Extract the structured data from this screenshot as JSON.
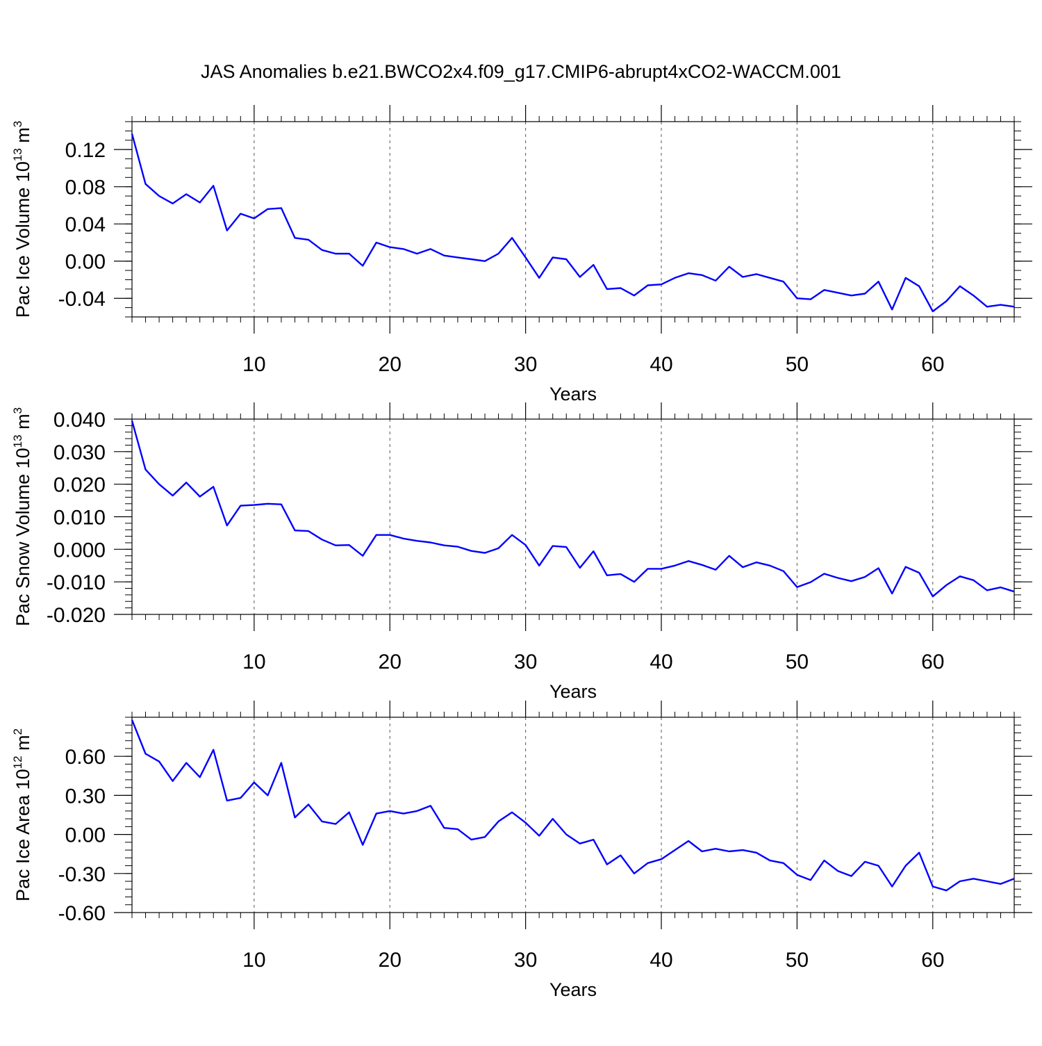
{
  "title": "JAS Anomalies b.e21.BWCO2x4.f09_g17.CMIP6-abrupt4xCO2-WACCM.001",
  "line_color": "#0000ff",
  "chart_data": [
    {
      "type": "line",
      "name": "ice-volume",
      "ylabel": "Pac Ice Volume 10",
      "ylabel_exp": "13",
      "ylabel_unit": " m",
      "ylabel_unit_exp": "3",
      "xlabel": "Years",
      "xlim": [
        1,
        66
      ],
      "ylim": [
        -0.06,
        0.15
      ],
      "yticks": [
        -0.04,
        0.0,
        0.04,
        0.08,
        0.12
      ],
      "ytick_labels": [
        "-0.04",
        "0.00",
        "0.04",
        "0.08",
        "0.12"
      ],
      "yminor_step": 0.01,
      "xticks": [
        10,
        20,
        30,
        40,
        50,
        60
      ],
      "xtick_labels": [
        "10",
        "20",
        "30",
        "40",
        "50",
        "60"
      ],
      "grid": "vertical dashed at x ticks",
      "x": [
        1,
        2,
        3,
        4,
        5,
        6,
        7,
        8,
        9,
        10,
        11,
        12,
        13,
        14,
        15,
        16,
        17,
        18,
        19,
        20,
        21,
        22,
        23,
        24,
        25,
        26,
        27,
        28,
        29,
        30,
        31,
        32,
        33,
        34,
        35,
        36,
        37,
        38,
        39,
        40,
        41,
        42,
        43,
        44,
        45,
        46,
        47,
        48,
        49,
        50,
        51,
        52,
        53,
        54,
        55,
        56,
        57,
        58,
        59,
        60,
        61,
        62,
        63,
        64,
        65,
        66
      ],
      "values": [
        0.137,
        0.083,
        0.07,
        0.062,
        0.072,
        0.063,
        0.081,
        0.033,
        0.051,
        0.046,
        0.056,
        0.057,
        0.025,
        0.023,
        0.012,
        0.008,
        0.008,
        -0.005,
        0.02,
        0.015,
        0.013,
        0.008,
        0.013,
        0.006,
        0.004,
        0.002,
        0.0,
        0.008,
        0.025,
        0.004,
        -0.018,
        0.004,
        0.002,
        -0.017,
        -0.004,
        -0.03,
        -0.029,
        -0.037,
        -0.026,
        -0.025,
        -0.018,
        -0.013,
        -0.015,
        -0.021,
        -0.006,
        -0.017,
        -0.014,
        -0.018,
        -0.022,
        -0.04,
        -0.041,
        -0.031,
        -0.034,
        -0.037,
        -0.035,
        -0.022,
        -0.052,
        -0.018,
        -0.027,
        -0.054,
        -0.043,
        -0.027,
        -0.037,
        -0.049,
        -0.047,
        -0.049
      ]
    },
    {
      "type": "line",
      "name": "snow-volume",
      "ylabel": "Pac Snow Volume 10",
      "ylabel_exp": "13",
      "ylabel_unit": " m",
      "ylabel_unit_exp": "3",
      "xlabel": "Years",
      "xlim": [
        1,
        66
      ],
      "ylim": [
        -0.02,
        0.04
      ],
      "yticks": [
        -0.02,
        -0.01,
        0.0,
        0.01,
        0.02,
        0.03,
        0.04
      ],
      "ytick_labels": [
        "-0.020",
        "-0.010",
        "0.000",
        "0.010",
        "0.020",
        "0.030",
        "0.040"
      ],
      "yminor_step": 0.002,
      "xticks": [
        10,
        20,
        30,
        40,
        50,
        60
      ],
      "xtick_labels": [
        "10",
        "20",
        "30",
        "40",
        "50",
        "60"
      ],
      "grid": "vertical dashed at x ticks",
      "x": [
        1,
        2,
        3,
        4,
        5,
        6,
        7,
        8,
        9,
        10,
        11,
        12,
        13,
        14,
        15,
        16,
        17,
        18,
        19,
        20,
        21,
        22,
        23,
        24,
        25,
        26,
        27,
        28,
        29,
        30,
        31,
        32,
        33,
        34,
        35,
        36,
        37,
        38,
        39,
        40,
        41,
        42,
        43,
        44,
        45,
        46,
        47,
        48,
        49,
        50,
        51,
        52,
        53,
        54,
        55,
        56,
        57,
        58,
        59,
        60,
        61,
        62,
        63,
        64,
        65,
        66
      ],
      "values": [
        0.0395,
        0.0245,
        0.02,
        0.0165,
        0.0205,
        0.0162,
        0.0192,
        0.0073,
        0.0134,
        0.0136,
        0.014,
        0.0138,
        0.0058,
        0.0056,
        0.003,
        0.0012,
        0.0013,
        -0.002,
        0.0044,
        0.0044,
        0.0033,
        0.0026,
        0.0021,
        0.0012,
        0.0008,
        -0.0005,
        -0.0011,
        0.0003,
        0.0044,
        0.0013,
        -0.005,
        0.001,
        0.0007,
        -0.0057,
        -0.0006,
        -0.008,
        -0.0076,
        -0.01,
        -0.006,
        -0.006,
        -0.005,
        -0.0036,
        -0.0048,
        -0.0063,
        -0.002,
        -0.0055,
        -0.004,
        -0.005,
        -0.0067,
        -0.0116,
        -0.0101,
        -0.0075,
        -0.0088,
        -0.0098,
        -0.0085,
        -0.0058,
        -0.0136,
        -0.0054,
        -0.0072,
        -0.0145,
        -0.011,
        -0.0083,
        -0.0095,
        -0.0126,
        -0.0117,
        -0.013
      ]
    },
    {
      "type": "line",
      "name": "ice-area",
      "ylabel": "Pac Ice Area 10",
      "ylabel_exp": "12",
      "ylabel_unit": " m",
      "ylabel_unit_exp": "2",
      "xlabel": "Years",
      "xlim": [
        1,
        66
      ],
      "ylim": [
        -0.6,
        0.9
      ],
      "yticks": [
        -0.6,
        -0.3,
        0.0,
        0.3,
        0.6
      ],
      "ytick_labels": [
        "-0.60",
        "-0.30",
        "0.00",
        "0.30",
        "0.60"
      ],
      "yminor_step": 0.06,
      "xticks": [
        10,
        20,
        30,
        40,
        50,
        60
      ],
      "xtick_labels": [
        "10",
        "20",
        "30",
        "40",
        "50",
        "60"
      ],
      "grid": "vertical dashed at x ticks",
      "x": [
        1,
        2,
        3,
        4,
        5,
        6,
        7,
        8,
        9,
        10,
        11,
        12,
        13,
        14,
        15,
        16,
        17,
        18,
        19,
        20,
        21,
        22,
        23,
        24,
        25,
        26,
        27,
        28,
        29,
        30,
        31,
        32,
        33,
        34,
        35,
        36,
        37,
        38,
        39,
        40,
        41,
        42,
        43,
        44,
        45,
        46,
        47,
        48,
        49,
        50,
        51,
        52,
        53,
        54,
        55,
        56,
        57,
        58,
        59,
        60,
        61,
        62,
        63,
        64,
        65,
        66
      ],
      "values": [
        0.88,
        0.62,
        0.56,
        0.41,
        0.55,
        0.44,
        0.65,
        0.26,
        0.28,
        0.4,
        0.3,
        0.55,
        0.13,
        0.23,
        0.1,
        0.08,
        0.17,
        -0.08,
        0.16,
        0.18,
        0.16,
        0.18,
        0.22,
        0.05,
        0.04,
        -0.04,
        -0.02,
        0.1,
        0.17,
        0.09,
        -0.01,
        0.12,
        0.0,
        -0.07,
        -0.04,
        -0.23,
        -0.16,
        -0.3,
        -0.22,
        -0.19,
        -0.12,
        -0.05,
        -0.13,
        -0.11,
        -0.13,
        -0.12,
        -0.14,
        -0.2,
        -0.22,
        -0.31,
        -0.35,
        -0.2,
        -0.28,
        -0.32,
        -0.21,
        -0.24,
        -0.4,
        -0.24,
        -0.14,
        -0.4,
        -0.43,
        -0.36,
        -0.34,
        -0.36,
        -0.38,
        -0.34
      ]
    }
  ]
}
